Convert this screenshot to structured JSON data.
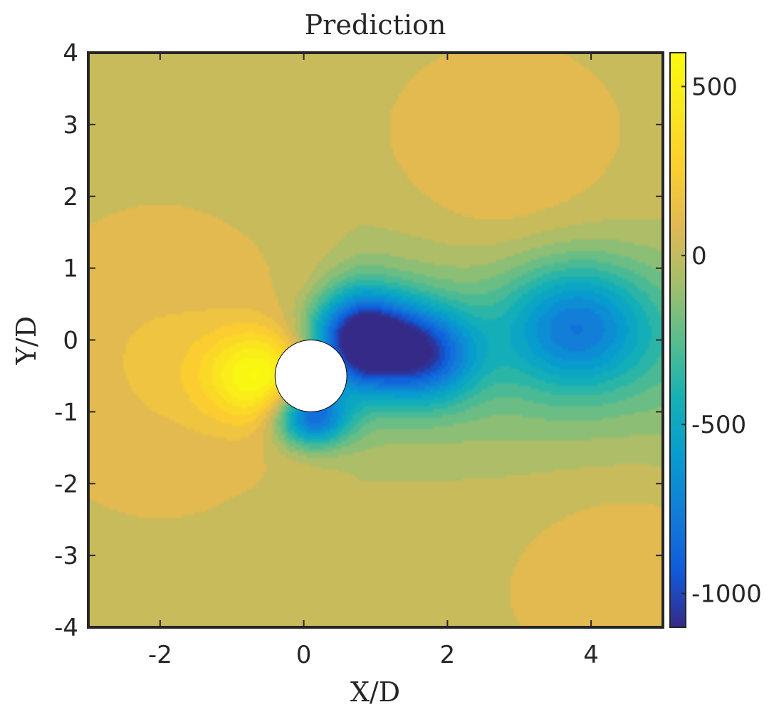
{
  "chart_data": {
    "type": "heatmap",
    "title": "Prediction",
    "xlabel": "X/D",
    "ylabel": "Y/D",
    "xlim": [
      -3,
      5
    ],
    "ylim": [
      -4,
      4
    ],
    "x_ticks": [
      -2,
      0,
      2,
      4
    ],
    "y_ticks": [
      -4,
      -3,
      -2,
      -1,
      0,
      1,
      2,
      3,
      4
    ],
    "colorbar": {
      "range": [
        -1100,
        600
      ],
      "ticks": [
        500,
        0,
        -500,
        -1000
      ],
      "colormap": "parula"
    },
    "cylinder": {
      "center": [
        0.1,
        -0.5
      ],
      "diameter": 1.0
    },
    "field_features": [
      {
        "kind": "low",
        "x": 0.8,
        "y": 0.0,
        "value": -1100
      },
      {
        "kind": "low",
        "x": 1.7,
        "y": -0.2,
        "value": -700
      },
      {
        "kind": "low",
        "x": 3.8,
        "y": 0.2,
        "value": -550
      },
      {
        "kind": "low",
        "x": 0.1,
        "y": -1.05,
        "value": -900
      },
      {
        "kind": "high",
        "x": -0.6,
        "y": -0.5,
        "value": 600
      },
      {
        "kind": "high",
        "x": 2.8,
        "y": 2.2,
        "value": 150
      },
      {
        "kind": "high",
        "x": -2.0,
        "y": -0.3,
        "value": 150
      },
      {
        "kind": "high",
        "x": 4.5,
        "y": -3.0,
        "value": 120
      }
    ]
  }
}
